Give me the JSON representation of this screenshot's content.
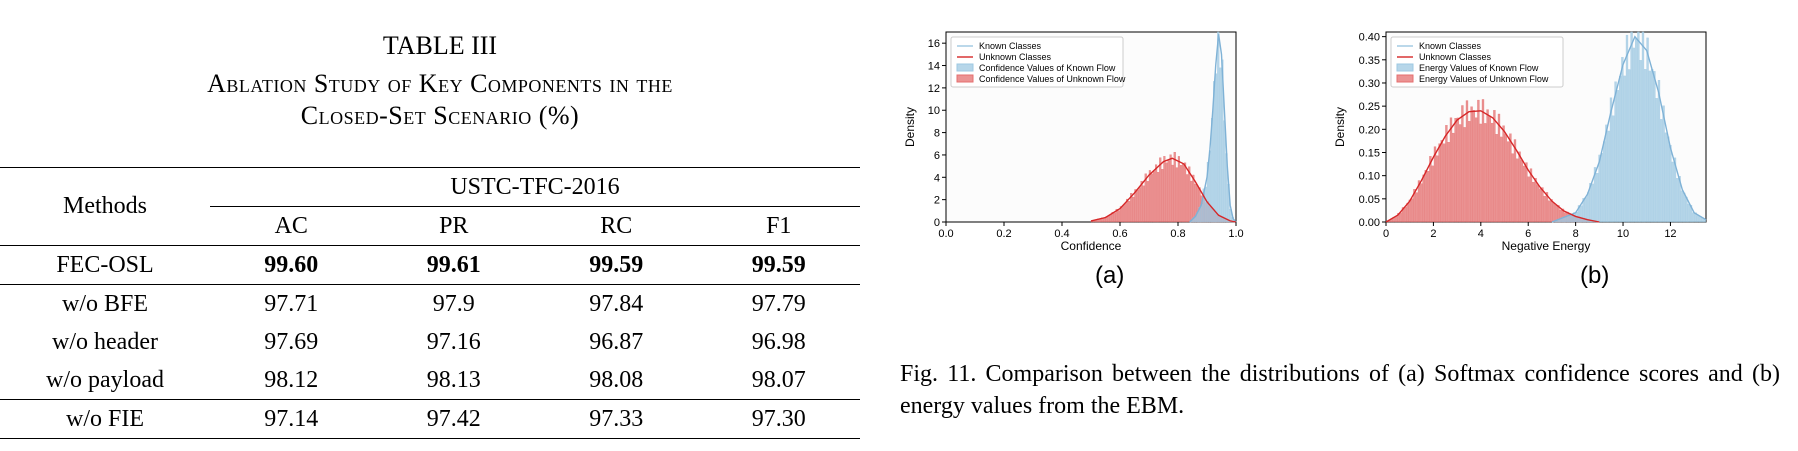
{
  "table": {
    "title": "TABLE III",
    "subtitle_line1": "Ablation Study of Key Components in the",
    "subtitle_line2": "Closed-Set Scenario (%)",
    "methods_header": "Methods",
    "dataset_header": "USTC-TFC-2016",
    "metric_headers": [
      "AC",
      "PR",
      "RC",
      "F1"
    ],
    "rows": [
      {
        "method": "FEC-OSL",
        "values": [
          "99.60",
          "99.61",
          "99.59",
          "99.59"
        ],
        "bold": true
      },
      {
        "method": "w/o BFE",
        "values": [
          "97.71",
          "97.9",
          "97.84",
          "97.79"
        ]
      },
      {
        "method": "w/o header",
        "values": [
          "97.69",
          "97.16",
          "96.87",
          "96.98"
        ]
      },
      {
        "method": "w/o payload",
        "values": [
          "98.12",
          "98.13",
          "98.08",
          "98.07"
        ]
      },
      {
        "method": "w/o FIE",
        "values": [
          "97.14",
          "97.42",
          "97.33",
          "97.30"
        ]
      }
    ]
  },
  "figure": {
    "caption": "Fig. 11.  Comparison between the distributions of (a) Softmax confidence scores and (b) energy values from the EBM.",
    "subfig_a_label": "(a)",
    "subfig_b_label": "(b)"
  },
  "colors": {
    "known": "#9ec8e2",
    "known_line": "#7fb2d6",
    "unknown": "#e46f6f",
    "unknown_line": "#d62728"
  },
  "chart_data": [
    {
      "type": "area",
      "xlabel": "Confidence",
      "ylabel": "Density",
      "xlim": [
        0.0,
        1.0
      ],
      "ylim": [
        0,
        17
      ],
      "xticks": [
        "0.0",
        "0.2",
        "0.4",
        "0.6",
        "0.8",
        "1.0"
      ],
      "yticks": [
        "0",
        "2",
        "4",
        "6",
        "8",
        "10",
        "12",
        "14",
        "16"
      ],
      "legend": [
        "Known Classes",
        "Unknown Classes",
        "Confidence Values of Known Flow",
        "Confidence Values of Unknown Flow"
      ],
      "legend_position": "top-left",
      "series": [
        {
          "name": "Known Classes",
          "x": [
            0.84,
            0.86,
            0.88,
            0.9,
            0.91,
            0.92,
            0.93,
            0.94,
            0.95,
            0.96,
            0.97,
            0.98,
            0.99,
            1.0
          ],
          "y": [
            0,
            0.5,
            1.5,
            4.0,
            6.5,
            10.0,
            14.0,
            16.8,
            15.0,
            10.0,
            5.0,
            1.5,
            0.3,
            0
          ]
        },
        {
          "name": "Unknown Classes",
          "x": [
            0.5,
            0.55,
            0.6,
            0.65,
            0.7,
            0.75,
            0.78,
            0.82,
            0.86,
            0.9,
            0.94,
            0.98,
            1.0
          ],
          "y": [
            0.1,
            0.4,
            1.2,
            2.6,
            4.2,
            5.4,
            5.7,
            5.2,
            3.6,
            1.8,
            0.6,
            0.1,
            0
          ]
        }
      ]
    },
    {
      "type": "area",
      "xlabel": "Negative Energy",
      "ylabel": "Density",
      "xlim": [
        0,
        13.5
      ],
      "ylim": [
        0,
        0.41
      ],
      "xticks": [
        "0",
        "2",
        "4",
        "6",
        "8",
        "10",
        "12"
      ],
      "yticks": [
        "0.00",
        "0.05",
        "0.10",
        "0.15",
        "0.20",
        "0.25",
        "0.30",
        "0.35",
        "0.40"
      ],
      "legend": [
        "Known Classes",
        "Unknown Classes",
        "Energy Values of Known Flow",
        "Energy Values of Unknown Flow"
      ],
      "legend_position": "top-left",
      "series": [
        {
          "name": "Known Classes",
          "x": [
            7.0,
            8.0,
            8.5,
            9.0,
            9.5,
            10.0,
            10.5,
            11.0,
            11.5,
            12.0,
            12.5,
            13.0,
            13.5
          ],
          "y": [
            0,
            0.02,
            0.06,
            0.13,
            0.24,
            0.34,
            0.4,
            0.37,
            0.28,
            0.16,
            0.07,
            0.02,
            0.005
          ]
        },
        {
          "name": "Unknown Classes",
          "x": [
            0,
            0.5,
            1.0,
            1.5,
            2.0,
            2.5,
            3.0,
            3.5,
            4.0,
            4.5,
            5.0,
            5.5,
            6.0,
            6.5,
            7.0,
            7.5,
            8.0,
            8.5,
            9.0
          ],
          "y": [
            0.0,
            0.015,
            0.045,
            0.09,
            0.14,
            0.185,
            0.22,
            0.238,
            0.24,
            0.225,
            0.195,
            0.155,
            0.112,
            0.075,
            0.045,
            0.024,
            0.012,
            0.005,
            0.0
          ]
        }
      ]
    }
  ]
}
